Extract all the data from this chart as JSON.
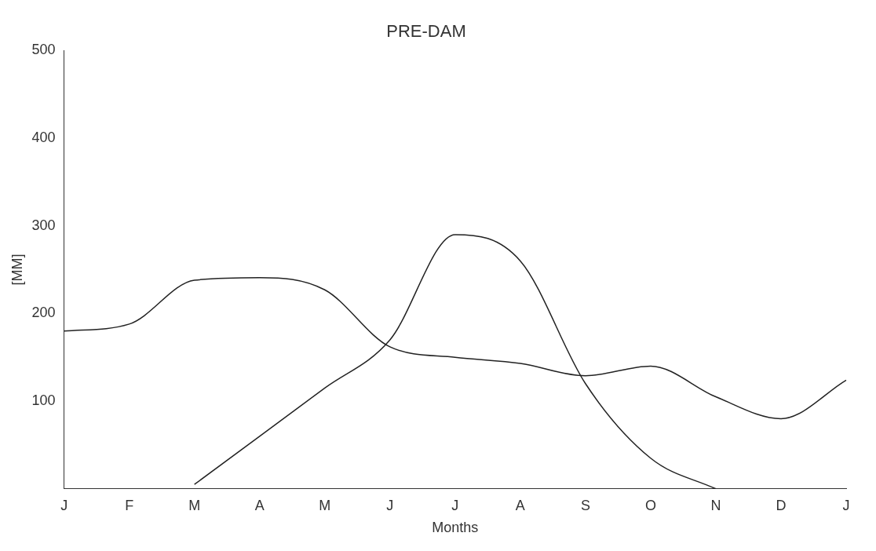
{
  "chart_data": {
    "type": "line",
    "title": "PRE-DAM",
    "xlabel": "Months",
    "ylabel": "[MM]",
    "categories": [
      "J",
      "F",
      "M",
      "A",
      "M",
      "J",
      "J",
      "A",
      "S",
      "O",
      "N",
      "D",
      "J"
    ],
    "ylim": [
      0,
      500
    ],
    "yticks": [
      100,
      200,
      300,
      400,
      500
    ],
    "grid": false,
    "legend": false,
    "marker": "none",
    "line_style": "solid",
    "series": [
      {
        "color": "#222222",
        "values": [
          180,
          188,
          238,
          241,
          227,
          162,
          150,
          143,
          129,
          140,
          105,
          80,
          124
        ]
      },
      {
        "color": "#222222",
        "values": [
          null,
          null,
          5,
          60,
          115,
          170,
          290,
          260,
          120,
          35,
          0,
          null,
          null
        ]
      }
    ]
  }
}
